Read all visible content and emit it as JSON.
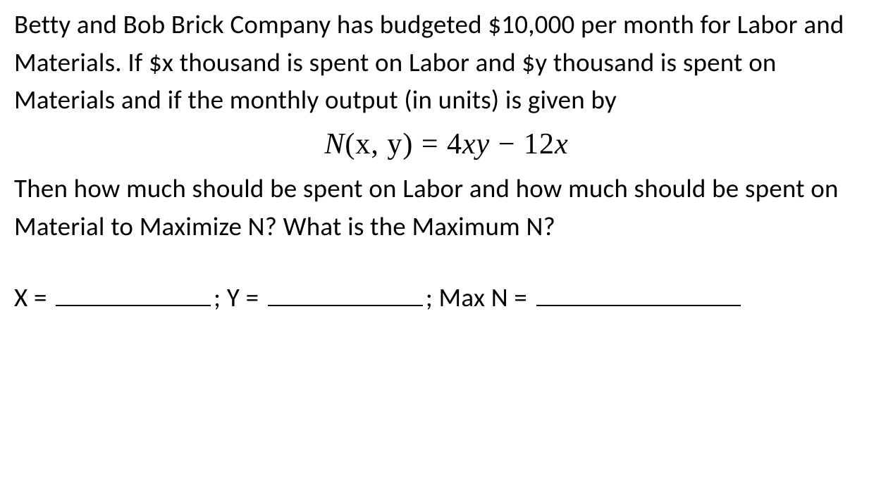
{
  "problem": {
    "text": "Betty and Bob Brick Company has budgeted $10,000 per month for Labor and Materials. If $x thousand is spent on Labor and $y thousand is spent on Materials and if the monthly output (in units) is given by"
  },
  "formula": {
    "lhs_func": "N",
    "lhs_args": "(x, y)",
    "equals": " = ",
    "rhs_term1_coef": "4",
    "rhs_term1_vars": "xy",
    "rhs_minus": " − ",
    "rhs_term2_coef": "12",
    "rhs_term2_var": "x"
  },
  "question": {
    "text": "Then how much should be spent on Labor and how much should be spent on Material to Maximize N? What is the Maximum N?"
  },
  "answers": {
    "x_label": "X = ",
    "sep1": "; Y = ",
    "sep2": "; Max N = "
  }
}
